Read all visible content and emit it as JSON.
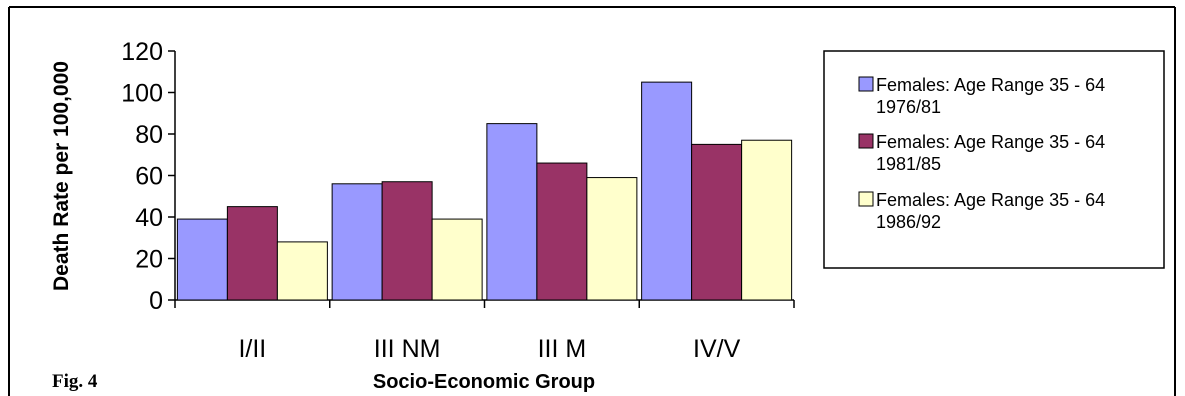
{
  "figure_label": "Fig. 4",
  "chart_data": {
    "type": "bar",
    "title": "",
    "xlabel": "Socio-Economic Group",
    "ylabel": "Death Rate per 100,000",
    "ylim": [
      0,
      120
    ],
    "yticks": [
      0,
      20,
      40,
      60,
      80,
      100,
      120
    ],
    "grid": false,
    "legend_position": "right",
    "categories": [
      "I/II",
      "III NM",
      "III M",
      "IV/V"
    ],
    "series": [
      {
        "name": "Females: Age Range 35 - 64 1976/81",
        "legend_line1": "Females: Age Range 35 - 64",
        "legend_line2": "1976/81",
        "color": "#9999ff",
        "values": [
          39,
          56,
          85,
          105
        ]
      },
      {
        "name": "Females: Age Range 35 - 64 1981/85",
        "legend_line1": "Females: Age Range 35 - 64",
        "legend_line2": "1981/85",
        "color": "#993366",
        "values": [
          45,
          57,
          66,
          75
        ]
      },
      {
        "name": "Females: Age Range 35 - 64 1986/92",
        "legend_line1": "Females: Age Range 35 - 64",
        "legend_line2": "1986/92",
        "color": "#ffffcc",
        "values": [
          28,
          39,
          59,
          77
        ]
      }
    ]
  }
}
